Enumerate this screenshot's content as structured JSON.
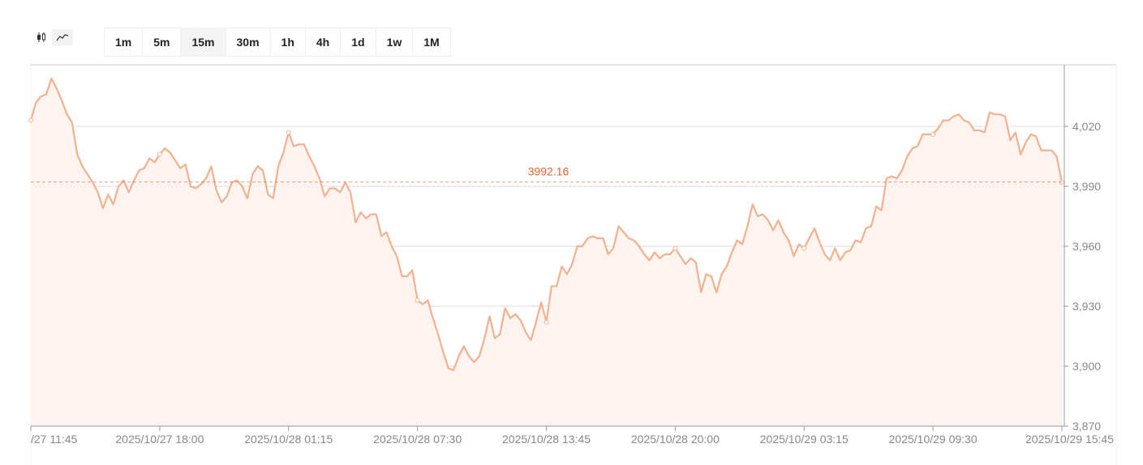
{
  "toolbar": {
    "chart_types": [
      {
        "icon": "candlestick-icon",
        "active": false
      },
      {
        "icon": "line-chart-icon",
        "active": true
      }
    ],
    "intervals": [
      {
        "label": "1m",
        "active": false
      },
      {
        "label": "5m",
        "active": false
      },
      {
        "label": "15m",
        "active": true
      },
      {
        "label": "30m",
        "active": false
      },
      {
        "label": "1h",
        "active": false
      },
      {
        "label": "4h",
        "active": false
      },
      {
        "label": "1d",
        "active": false
      },
      {
        "label": "1w",
        "active": false
      },
      {
        "label": "1M",
        "active": false
      }
    ]
  },
  "colors": {
    "line": "#f2b08f",
    "area_fill": "#fdf4ef",
    "current_price": "#e8602c",
    "grid": "#cccccc",
    "axis": "#999999"
  },
  "chart_data": {
    "type": "line",
    "title": "",
    "xlabel": "",
    "ylabel": "",
    "current_price": 3992.16,
    "current_price_label": "3992.16",
    "ylim": [
      3870,
      4050
    ],
    "y_ticks": [
      {
        "value": 3870,
        "label": "3,870"
      },
      {
        "value": 3900,
        "label": "3,900"
      },
      {
        "value": 3930,
        "label": "3,930"
      },
      {
        "value": 3960,
        "label": "3,960"
      },
      {
        "value": 3990,
        "label": "3,990"
      },
      {
        "value": 4020,
        "label": "4,020"
      }
    ],
    "x_ticks": [
      {
        "index": 0,
        "label": "/27 11:45"
      },
      {
        "index": 25,
        "label": "2025/10/27 18:00"
      },
      {
        "index": 50,
        "label": "2025/10/28 01:15"
      },
      {
        "index": 75,
        "label": "2025/10/28 07:30"
      },
      {
        "index": 100,
        "label": "2025/10/28 13:45"
      },
      {
        "index": 125,
        "label": "2025/10/28 20:00"
      },
      {
        "index": 150,
        "label": "2025/10/29 03:15"
      },
      {
        "index": 175,
        "label": "2025/10/29 09:30"
      },
      {
        "index": 200,
        "label": "2025/10/29 15:45"
      }
    ],
    "grid": true,
    "series": [
      {
        "values": [
          4023,
          4032,
          4035,
          4036,
          4044,
          4039,
          4033,
          4026,
          4022,
          4006,
          4000,
          3996,
          3992,
          3987,
          3979,
          3986,
          3981,
          3990,
          3993,
          3987,
          3993,
          3998,
          3999,
          4004,
          4002,
          4006,
          4009,
          4007,
          4003,
          3999,
          4001,
          3990,
          3989,
          3991,
          3994,
          4000,
          3988,
          3982,
          3985,
          3992,
          3993,
          3990,
          3984,
          3996,
          4000,
          3998,
          3986,
          3984,
          4000,
          4007,
          4017,
          4010,
          4011,
          4011,
          4005,
          4000,
          3994,
          3985,
          3989,
          3989,
          3987,
          3992,
          3987,
          3972,
          3977,
          3974,
          3976,
          3976,
          3965,
          3967,
          3960,
          3955,
          3945,
          3945,
          3948,
          3933,
          3931,
          3933,
          3924,
          3916,
          3907,
          3899,
          3898,
          3905,
          3910,
          3905,
          3902,
          3905,
          3914,
          3925,
          3914,
          3916,
          3929,
          3924,
          3926,
          3923,
          3917,
          3913,
          3922,
          3932,
          3922,
          3940,
          3940,
          3950,
          3946,
          3951,
          3960,
          3960,
          3964,
          3965,
          3964,
          3964,
          3956,
          3959,
          3970,
          3967,
          3964,
          3963,
          3960,
          3956,
          3953,
          3957,
          3954,
          3956,
          3956,
          3959,
          3955,
          3951,
          3954,
          3952,
          3937,
          3946,
          3945,
          3937,
          3946,
          3950,
          3957,
          3963,
          3961,
          3970,
          3981,
          3975,
          3976,
          3973,
          3968,
          3973,
          3967,
          3963,
          3955,
          3961,
          3959,
          3964,
          3969,
          3962,
          3956,
          3953,
          3959,
          3953,
          3957,
          3958,
          3963,
          3962,
          3969,
          3970,
          3980,
          3978,
          3994,
          3995,
          3994,
          3998,
          4005,
          4009,
          4010,
          4016,
          4016,
          4016,
          4019,
          4023,
          4023,
          4025,
          4026,
          4023,
          4022,
          4018,
          4018,
          4017,
          4027,
          4026,
          4026,
          4025,
          4013,
          4017,
          4006,
          4012,
          4016,
          4015,
          4008,
          4008,
          4008,
          4005,
          3992
        ]
      }
    ]
  }
}
